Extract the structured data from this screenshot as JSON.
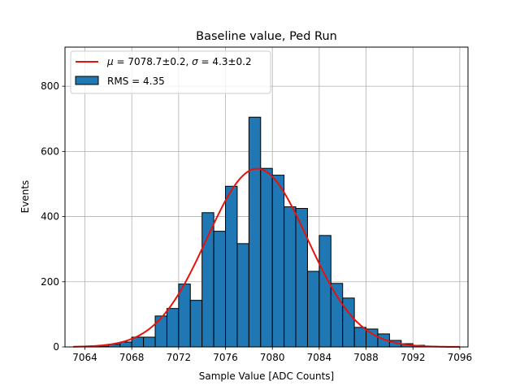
{
  "chart_data": {
    "type": "bar",
    "title": "Baseline value, Ped Run",
    "xlabel": "Sample Value [ADC Counts]",
    "ylabel": "Events",
    "xlim": [
      7062.3,
      7096.7
    ],
    "ylim": [
      0,
      920
    ],
    "xticks": [
      7064,
      7068,
      7072,
      7076,
      7080,
      7084,
      7088,
      7092,
      7096
    ],
    "yticks": [
      0,
      200,
      400,
      600,
      800
    ],
    "grid": true,
    "legend_position": "upper-left",
    "bar_color": "#1f77b4",
    "fit_color": "#e8120c",
    "histogram": {
      "name": "RMS = 4.35",
      "bin_width": 1,
      "bin_edges_start": 7065,
      "counts": [
        2,
        8,
        15,
        30,
        30,
        95,
        118,
        193,
        143,
        412,
        355,
        493,
        317,
        705,
        548,
        527,
        430,
        425,
        232,
        342,
        195,
        150,
        60,
        55,
        40,
        20,
        10,
        5,
        2
      ]
    },
    "fit": {
      "name": "$\\mu = 7078.7 \\pm 0.2$, $\\sigma = 4.3 \\pm 0.2$",
      "label_parts": [
        "μ",
        " = 7078.7±0.2, ",
        "σ",
        " = 4.3±0.2"
      ],
      "mu": 7078.7,
      "sigma": 4.3,
      "peak": 547,
      "x_range": [
        7063,
        7096
      ]
    }
  }
}
